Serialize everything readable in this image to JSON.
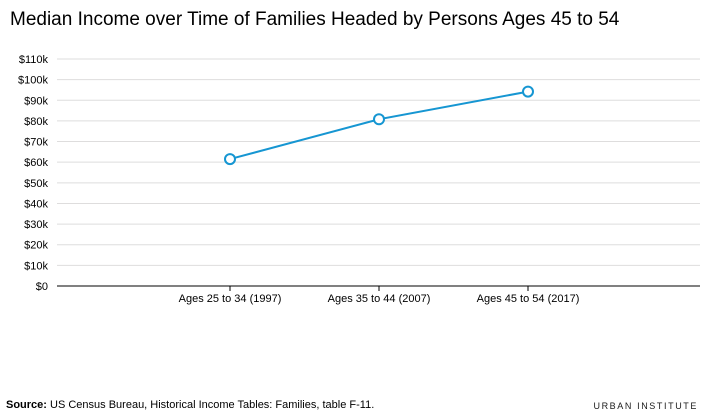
{
  "title": "Median Income over Time of Families Headed by Persons Ages 45 to 54",
  "chart_data": {
    "type": "line",
    "title": "Median Income over Time of Families Headed by Persons Ages 45 to 54",
    "xlabel": "",
    "ylabel": "",
    "categories": [
      "Ages 25 to 34 (1997)",
      "Ages 35 to 44 (2007)",
      "Ages 45 to 54 (2017)"
    ],
    "values": [
      61500,
      80800,
      94200
    ],
    "ylim": [
      0,
      110000
    ],
    "yticks": [
      0,
      10000,
      20000,
      30000,
      40000,
      50000,
      60000,
      70000,
      80000,
      90000,
      100000,
      110000
    ],
    "ytick_labels": [
      "$0",
      "$10k",
      "$20k",
      "$30k",
      "$40k",
      "$50k",
      "$60k",
      "$70k",
      "$80k",
      "$90k",
      "$100k",
      "$110k"
    ],
    "grid": true,
    "line_color": "#1696d2",
    "marker": "open-circle"
  },
  "source": {
    "label": "Source:",
    "text": " US Census Bureau, Historical Income Tables: Families, table F-11."
  },
  "logo": "URBAN INSTITUTE"
}
